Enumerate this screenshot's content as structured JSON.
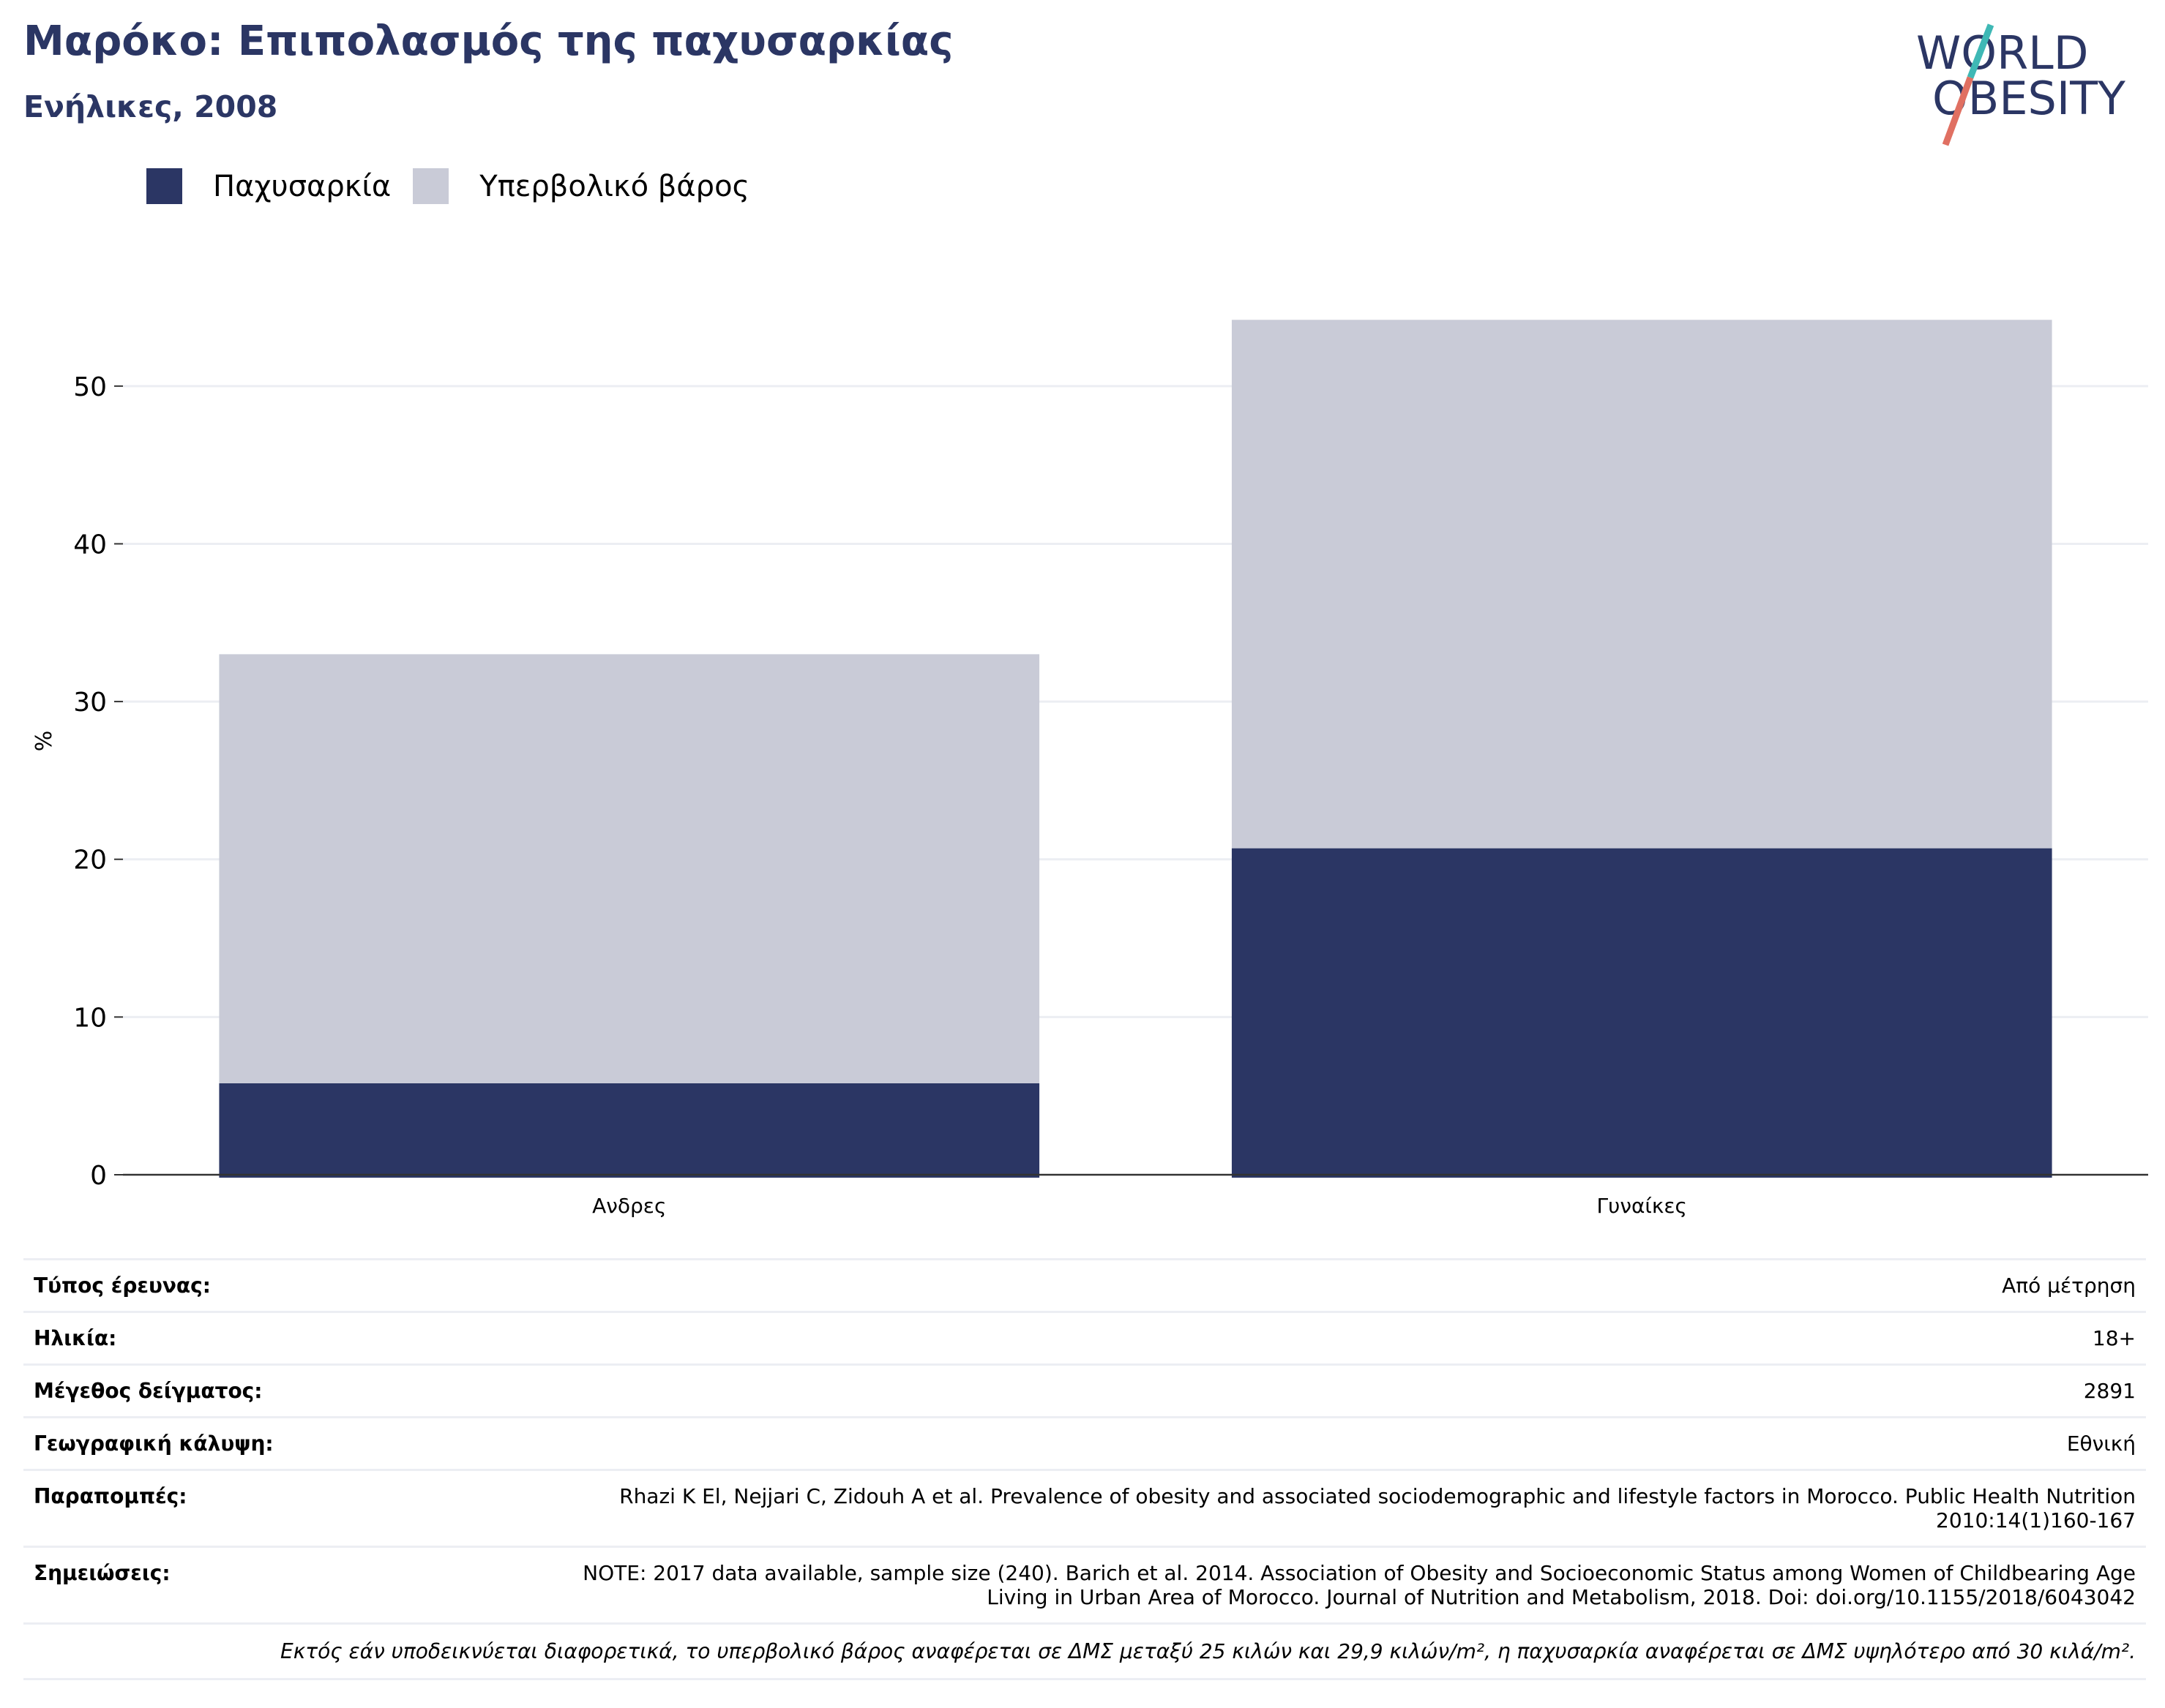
{
  "header": {
    "title": "Μαρόκο: Επιπολασμός της παχυσαρκίας",
    "subtitle": "Ενήλικες, 2008"
  },
  "logo": {
    "line1": "WORLD",
    "line2": "OBESITY"
  },
  "colors": {
    "obesity": "#2b3664",
    "overweight": "#c9cbd7",
    "grid": "#eceef3",
    "text": "#000000",
    "title": "#2b3664"
  },
  "legend": [
    {
      "label": "Παχυσαρκία",
      "color": "#2b3664"
    },
    {
      "label": "Υπερβολικό βάρος",
      "color": "#c9cbd7"
    }
  ],
  "chart_data": {
    "type": "bar",
    "stacked": true,
    "categories": [
      "Ανδρες",
      "Γυναίκες"
    ],
    "series": [
      {
        "name": "Παχυσαρκία",
        "values": [
          5.8,
          20.7
        ]
      },
      {
        "name": "Υπερβολικό βάρος",
        "values": [
          27.2,
          33.5
        ]
      }
    ],
    "ylabel": "%",
    "ylim": [
      0,
      55
    ],
    "yticks": [
      0,
      10,
      20,
      30,
      40,
      50
    ],
    "grid": true,
    "legend_position": "top-left"
  },
  "info": {
    "rows": [
      {
        "key": "Τύπος έρευνας:",
        "value": "Από μέτρηση"
      },
      {
        "key": "Ηλικία:",
        "value": "18+"
      },
      {
        "key": "Μέγεθος δείγματος:",
        "value": "2891"
      },
      {
        "key": "Γεωγραφική κάλυψη:",
        "value": "Εθνική"
      },
      {
        "key": "Παραπομπές:",
        "value": "Rhazi K El, Nejjari C, Zidouh A et al. Prevalence of obesity and associated sociodemographic and lifestyle factors in Morocco. Public Health Nutrition 2010:14(1)160-167"
      },
      {
        "key": "Σημειώσεις:",
        "value": "NOTE: 2017 data available, sample size (240). Barich et al. 2014. Association of Obesity and Socioeconomic Status among Women of Childbearing Age Living in Urban Area of Morocco. Journal of Nutrition and Metabolism, 2018. Doi: doi.org/10.1155/2018/6043042"
      }
    ],
    "footnote": "Εκτός εάν υποδεικνύεται διαφορετικά, το υπερβολικό βάρος αναφέρεται σε ΔΜΣ μεταξύ 25 κιλών και 29,9 κιλών/m², η παχυσαρκία αναφέρεται σε ΔΜΣ υψηλότερο από 30 κιλά/m²."
  }
}
